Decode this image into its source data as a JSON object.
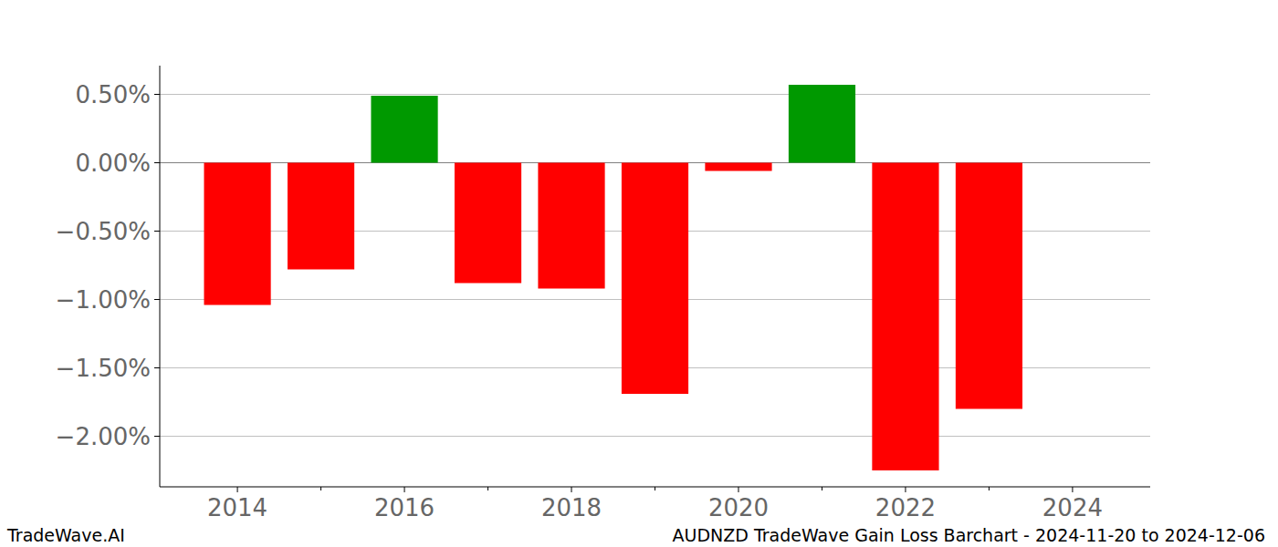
{
  "chart_data": {
    "type": "bar",
    "title": "AUDNZD TradeWave Gain Loss Barchart - 2024-11-20 to 2024-12-06",
    "annotations": [
      "TradeWave.AI"
    ],
    "x": [
      2014,
      2015,
      2016,
      2017,
      2018,
      2019,
      2020,
      2021,
      2022,
      2023
    ],
    "values": [
      -1.04,
      -0.78,
      0.49,
      -0.88,
      -0.92,
      -1.69,
      -0.06,
      0.57,
      -2.25,
      -1.8
    ],
    "colors": [
      "#ff0000",
      "#ff0000",
      "#009900",
      "#ff0000",
      "#ff0000",
      "#ff0000",
      "#ff0000",
      "#009900",
      "#ff0000",
      "#ff0000"
    ],
    "xlim": [
      2013.07,
      2024.93
    ],
    "xticks": [
      2014,
      2016,
      2018,
      2020,
      2022,
      2024
    ],
    "ylim": [
      -2.37,
      0.71
    ],
    "yticks": [
      {
        "value": 0.5,
        "label": "0.50%"
      },
      {
        "value": 0,
        "label": "0.00%"
      },
      {
        "value": -0.5,
        "label": "−0.50%"
      },
      {
        "value": -1,
        "label": "−1.00%"
      },
      {
        "value": -1.5,
        "label": "−1.50%"
      },
      {
        "value": -2,
        "label": "−2.00%"
      }
    ],
    "grid": true
  }
}
